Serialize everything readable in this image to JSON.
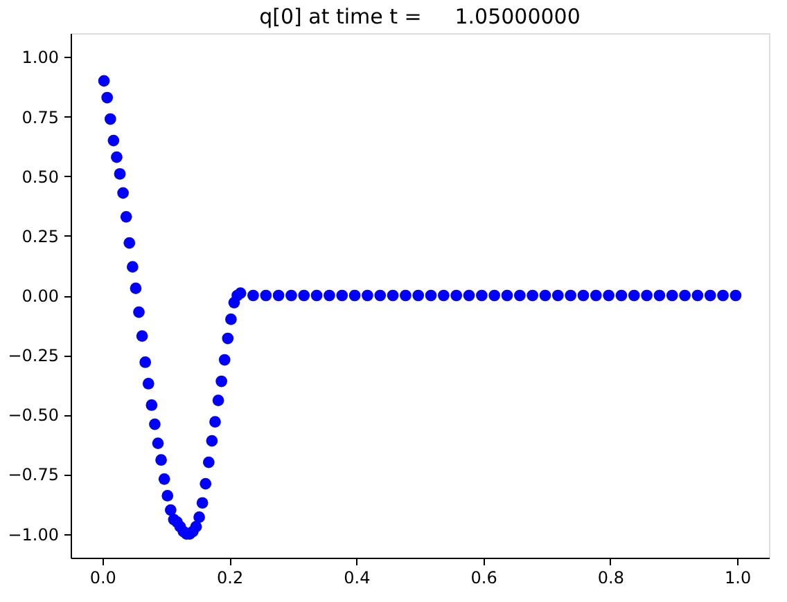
{
  "chart_data": {
    "type": "scatter",
    "title": "q[0] at time t =     1.05000000",
    "x": [
      0.0025,
      0.0075,
      0.0125,
      0.0175,
      0.0225,
      0.0275,
      0.0325,
      0.0375,
      0.0425,
      0.0475,
      0.0525,
      0.0575,
      0.0625,
      0.0675,
      0.0725,
      0.0775,
      0.0825,
      0.0875,
      0.0925,
      0.0975,
      0.1025,
      0.1075,
      0.1125,
      0.1175,
      0.1225,
      0.1275,
      0.1325,
      0.1375,
      0.1425,
      0.1475,
      0.1525,
      0.1575,
      0.1625,
      0.1675,
      0.1725,
      0.1775,
      0.1825,
      0.1875,
      0.1925,
      0.1975,
      0.2025,
      0.2075,
      0.2125,
      0.2175,
      0.2375,
      0.2575,
      0.2775,
      0.2975,
      0.3175,
      0.3375,
      0.3575,
      0.3775,
      0.3975,
      0.4175,
      0.4375,
      0.4575,
      0.4775,
      0.4975,
      0.5175,
      0.5375,
      0.5575,
      0.5775,
      0.5975,
      0.6175,
      0.6375,
      0.6575,
      0.6775,
      0.6975,
      0.7175,
      0.7375,
      0.7575,
      0.7775,
      0.7975,
      0.8175,
      0.8375,
      0.8575,
      0.8775,
      0.8975,
      0.9175,
      0.9375,
      0.9575,
      0.9775,
      0.9975
    ],
    "series": [
      {
        "color": "#0000ff",
        "marker": "circle",
        "values": [
          0.9,
          0.83,
          0.74,
          0.65,
          0.58,
          0.51,
          0.43,
          0.33,
          0.22,
          0.12,
          0.03,
          -0.07,
          -0.17,
          -0.28,
          -0.37,
          -0.46,
          -0.54,
          -0.62,
          -0.69,
          -0.77,
          -0.84,
          -0.9,
          -0.94,
          -0.95,
          -0.97,
          -0.99,
          -1.0,
          -1.0,
          -0.99,
          -0.97,
          -0.93,
          -0.87,
          -0.79,
          -0.7,
          -0.61,
          -0.53,
          -0.44,
          -0.36,
          -0.27,
          -0.18,
          -0.1,
          -0.03,
          0.0,
          0.01,
          0.0,
          0.0,
          0.0,
          0.0,
          0.0,
          0.0,
          0.0,
          0.0,
          0.0,
          0.0,
          0.0,
          0.0,
          0.0,
          0.0,
          0.0,
          0.0,
          0.0,
          0.0,
          0.0,
          0.0,
          0.0,
          0.0,
          0.0,
          0.0,
          0.0,
          0.0,
          0.0,
          0.0,
          0.0,
          0.0,
          0.0,
          0.0,
          0.0,
          0.0,
          0.0,
          0.0,
          0.0,
          0.0,
          0.0
        ]
      }
    ],
    "xlim": [
      -0.05,
      1.05
    ],
    "xticks": [
      {
        "value": 0,
        "label": "0.0"
      },
      {
        "value": 0.2,
        "label": "0.2"
      },
      {
        "value": 0.4,
        "label": "0.4"
      },
      {
        "value": 0.6,
        "label": "0.6"
      },
      {
        "value": 0.8,
        "label": "0.8"
      },
      {
        "value": 1,
        "label": "1.0"
      }
    ],
    "ylim": [
      -1.1,
      1.1
    ],
    "yticks": [
      {
        "value": -1,
        "label": "−1.00"
      },
      {
        "value": -0.75,
        "label": "−0.75"
      },
      {
        "value": -0.5,
        "label": "−0.50"
      },
      {
        "value": -0.25,
        "label": "−0.25"
      },
      {
        "value": 0,
        "label": "0.00"
      },
      {
        "value": 0.25,
        "label": "0.25"
      },
      {
        "value": 0.5,
        "label": "0.50"
      },
      {
        "value": 0.75,
        "label": "0.75"
      },
      {
        "value": 1,
        "label": "1.00"
      }
    ],
    "grid": false,
    "legend": false
  }
}
